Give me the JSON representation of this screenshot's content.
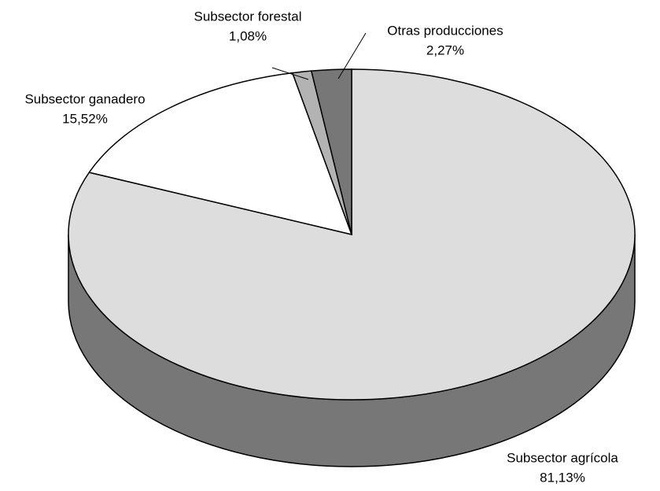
{
  "chart_data": {
    "type": "pie3d",
    "categories": [
      "Subsector agrícola",
      "Subsector ganadero",
      "Subsector forestal",
      "Otras producciones"
    ],
    "values": [
      81.13,
      15.52,
      1.08,
      2.27
    ],
    "value_labels": [
      "81,13%",
      "15,52%",
      "1,08%",
      "2,27%"
    ],
    "colors": [
      "#dddddd",
      "#ffffff",
      "#b3b3b3",
      "#777777"
    ],
    "side_color": "#777777"
  }
}
